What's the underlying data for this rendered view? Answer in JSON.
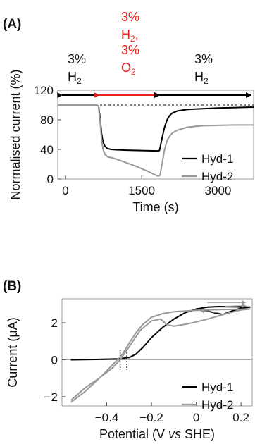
{
  "panels": {
    "a": {
      "label": "(A)"
    },
    "b": {
      "label": "(B)"
    }
  },
  "gas_phases": [
    {
      "line1": "3%",
      "line2": "H",
      "sub": "2",
      "color": "#000000"
    },
    {
      "lines": [
        "3%",
        "H",
        "3%",
        "O"
      ],
      "subs": [
        "2",
        "2"
      ],
      "suffix": ",",
      "color": "#e8211d"
    },
    {
      "line1": "3%",
      "line2": "H",
      "sub": "2",
      "color": "#000000"
    }
  ],
  "chart_data": [
    {
      "type": "line",
      "panel": "(A)",
      "xlabel": "Time (s)",
      "ylabel": "Normalised current (%)",
      "xlim": [
        -150,
        3700
      ],
      "ylim": [
        0,
        120
      ],
      "xticks": [
        0,
        1500,
        3000
      ],
      "yticks": [
        0,
        40,
        80,
        120
      ],
      "reference_line": {
        "y": 100,
        "style": "dashed"
      },
      "phase_boundaries": [
        0,
        650,
        1850,
        3700
      ],
      "series": [
        {
          "name": "Hyd-1",
          "color": "#000000",
          "points": [
            [
              -150,
              100
            ],
            [
              600,
              100
            ],
            [
              650,
              99
            ],
            [
              680,
              85
            ],
            [
              710,
              62
            ],
            [
              740,
              50
            ],
            [
              780,
              44
            ],
            [
              830,
              41
            ],
            [
              900,
              40
            ],
            [
              1000,
              39.5
            ],
            [
              1200,
              39
            ],
            [
              1500,
              38.5
            ],
            [
              1800,
              38
            ],
            [
              1850,
              38.5
            ],
            [
              1900,
              55
            ],
            [
              1950,
              70
            ],
            [
              2000,
              80
            ],
            [
              2050,
              86
            ],
            [
              2100,
              89
            ],
            [
              2200,
              92
            ],
            [
              2400,
              94
            ],
            [
              2700,
              95
            ],
            [
              3000,
              96
            ],
            [
              3300,
              96.5
            ],
            [
              3600,
              97
            ],
            [
              3700,
              97
            ]
          ]
        },
        {
          "name": "Hyd-2",
          "color": "#999999",
          "points": [
            [
              -150,
              100
            ],
            [
              600,
              100
            ],
            [
              650,
              99
            ],
            [
              680,
              80
            ],
            [
              710,
              55
            ],
            [
              740,
              40
            ],
            [
              780,
              33
            ],
            [
              830,
              30
            ],
            [
              900,
              29
            ],
            [
              1000,
              27
            ],
            [
              1200,
              22
            ],
            [
              1400,
              17
            ],
            [
              1600,
              11
            ],
            [
              1750,
              6
            ],
            [
              1820,
              4
            ],
            [
              1860,
              5
            ],
            [
              1900,
              20
            ],
            [
              1950,
              40
            ],
            [
              2000,
              52
            ],
            [
              2050,
              58
            ],
            [
              2100,
              62
            ],
            [
              2200,
              66
            ],
            [
              2400,
              70
            ],
            [
              2700,
              72
            ],
            [
              3000,
              72.5
            ],
            [
              3300,
              73
            ],
            [
              3700,
              73
            ]
          ]
        }
      ]
    },
    {
      "type": "line",
      "panel": "(B)",
      "xlabel": "Potential (V vs SHE)",
      "ylabel": "Current (μA)",
      "xlim": [
        -0.6,
        0.25
      ],
      "ylim": [
        -2.5,
        3.3
      ],
      "xticks": [
        -0.4,
        -0.2,
        0,
        0.2
      ],
      "yticks": [
        -2,
        0,
        2
      ],
      "zero_line": {
        "y": 0
      },
      "marker_lines": [
        -0.34,
        -0.31
      ],
      "series": [
        {
          "name": "Hyd-1",
          "color": "#000000",
          "points": [
            [
              -0.56,
              0
            ],
            [
              -0.45,
              0.02
            ],
            [
              -0.35,
              0.05
            ],
            [
              -0.3,
              0.12
            ],
            [
              -0.27,
              0.3
            ],
            [
              -0.24,
              0.65
            ],
            [
              -0.2,
              1.2
            ],
            [
              -0.15,
              1.75
            ],
            [
              -0.1,
              2.2
            ],
            [
              -0.05,
              2.55
            ],
            [
              0,
              2.75
            ],
            [
              0.05,
              2.85
            ],
            [
              0.1,
              2.88
            ],
            [
              0.15,
              2.87
            ],
            [
              0.2,
              2.86
            ],
            [
              0.24,
              2.85
            ],
            [
              0.2,
              2.8
            ],
            [
              0.15,
              2.6
            ],
            [
              0.12,
              2.45
            ],
            [
              0.08,
              2.55
            ],
            [
              0.03,
              2.7
            ],
            [
              0,
              2.75
            ]
          ]
        },
        {
          "name": "Hyd-2",
          "color": "#999999",
          "points": [
            [
              -0.56,
              -2.3
            ],
            [
              -0.5,
              -1.75
            ],
            [
              -0.45,
              -1.2
            ],
            [
              -0.4,
              -0.6
            ],
            [
              -0.36,
              -0.1
            ],
            [
              -0.33,
              0.3
            ],
            [
              -0.3,
              0.9
            ],
            [
              -0.27,
              1.45
            ],
            [
              -0.24,
              1.9
            ],
            [
              -0.2,
              2.3
            ],
            [
              -0.15,
              2.5
            ],
            [
              -0.1,
              2.6
            ],
            [
              0,
              2.68
            ],
            [
              0.1,
              2.72
            ],
            [
              0.2,
              2.74
            ],
            [
              0.24,
              2.75
            ],
            [
              0.2,
              2.7
            ],
            [
              0.15,
              2.55
            ],
            [
              0.1,
              2.38
            ],
            [
              0.05,
              2.2
            ],
            [
              0,
              2.05
            ],
            [
              -0.05,
              1.92
            ],
            [
              -0.1,
              1.82
            ],
            [
              -0.13,
              1.9
            ],
            [
              -0.16,
              2.2
            ],
            [
              -0.2,
              2.1
            ],
            [
              -0.25,
              1.6
            ],
            [
              -0.3,
              0.7
            ],
            [
              -0.34,
              0
            ],
            [
              -0.38,
              -0.5
            ],
            [
              -0.44,
              -1.05
            ],
            [
              -0.5,
              -1.55
            ],
            [
              -0.56,
              -2.2
            ]
          ]
        }
      ]
    }
  ]
}
